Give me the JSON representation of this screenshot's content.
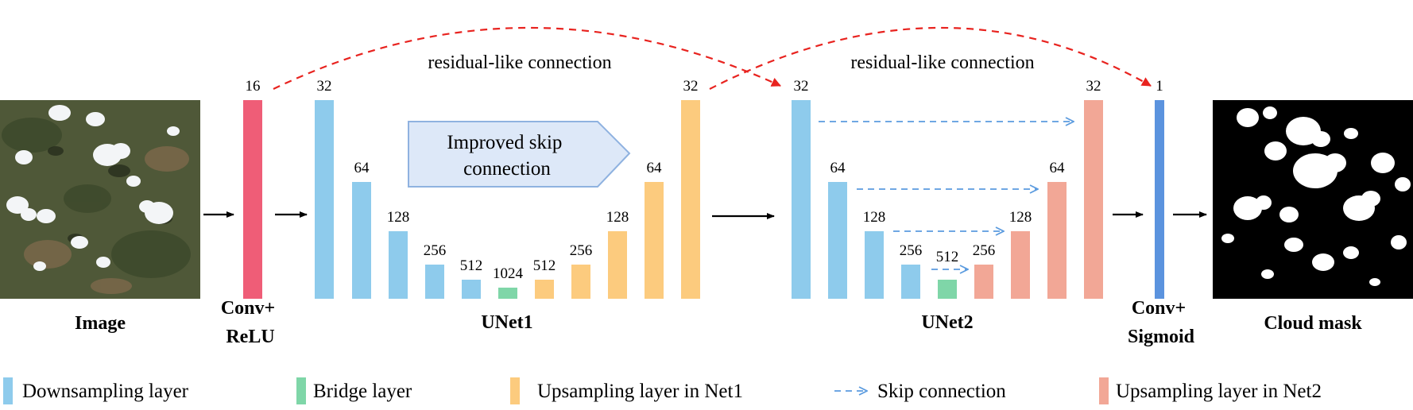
{
  "input_label": "Image",
  "conv_relu_label": [
    "Conv+",
    "ReLU"
  ],
  "conv_sigmoid_label": [
    "Conv+",
    "Sigmoid"
  ],
  "output_label": "Cloud mask",
  "unet1_label": "UNet1",
  "unet2_label": "UNet2",
  "residual_labels": [
    "residual-like connection",
    "residual-like connection"
  ],
  "improved_skip_label": [
    "Improved skip",
    "connection"
  ],
  "conv_relu_channels": "16",
  "conv_sigmoid_channels": "1",
  "unet1_channels": [
    "32",
    "64",
    "128",
    "256",
    "512",
    "1024",
    "512",
    "256",
    "128",
    "64",
    "32"
  ],
  "unet2_channels": [
    "32",
    "64",
    "128",
    "256",
    "512",
    "256",
    "128",
    "64",
    "32"
  ],
  "legend": [
    {
      "label": "Downsampling layer",
      "color": "#8ecbec"
    },
    {
      "label": "Bridge layer",
      "color": "#7fd6a8"
    },
    {
      "label": "Upsampling layer in Net1",
      "color": "#fccb7e"
    },
    {
      "label": "Skip connection",
      "color": "#5b9bdf"
    },
    {
      "label": "Upsampling layer in Net2",
      "color": "#f2a796"
    }
  ],
  "colors": {
    "conv_relu": "#ef5d77",
    "conv_sigmoid": "#5b93de",
    "downsampling": "#8ecbec",
    "bridge": "#7fd6a8",
    "upsampling_net1": "#fccb7e",
    "upsampling_net2": "#f2a796",
    "skip": "#5b9bdf",
    "residual": "#e8231f",
    "improved_skip_fill": "#dde8f8",
    "improved_skip_stroke": "#8fb2e0"
  }
}
